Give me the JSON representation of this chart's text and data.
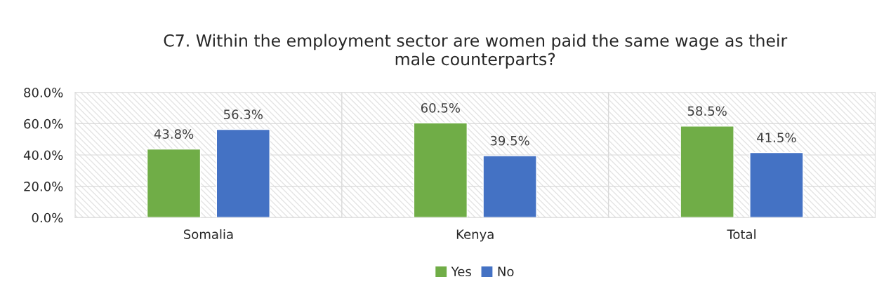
{
  "chart_data": {
    "type": "bar",
    "title": "C7. Within the employment sector are women paid the same wage as their\nmale counterparts?",
    "categories": [
      "Somalia",
      "Kenya",
      "Total"
    ],
    "series": [
      {
        "name": "Yes",
        "color": "#70ad47",
        "values": [
          43.8,
          60.5,
          58.5
        ],
        "value_labels": [
          "43.8%",
          "60.5%",
          "58.5%"
        ]
      },
      {
        "name": "No",
        "color": "#4472c4",
        "values": [
          56.3,
          39.5,
          41.5
        ],
        "value_labels": [
          "56.3%",
          "39.5%",
          "41.5%"
        ]
      }
    ],
    "ylim": [
      0,
      80
    ],
    "yticks": [
      {
        "value": 0,
        "label": "0.0%"
      },
      {
        "value": 20,
        "label": "20.0%"
      },
      {
        "value": 40,
        "label": "40.0%"
      },
      {
        "value": 60,
        "label": "60.0%"
      },
      {
        "value": 80,
        "label": "80.0%"
      }
    ],
    "grid": "y",
    "legend": "bottom"
  }
}
